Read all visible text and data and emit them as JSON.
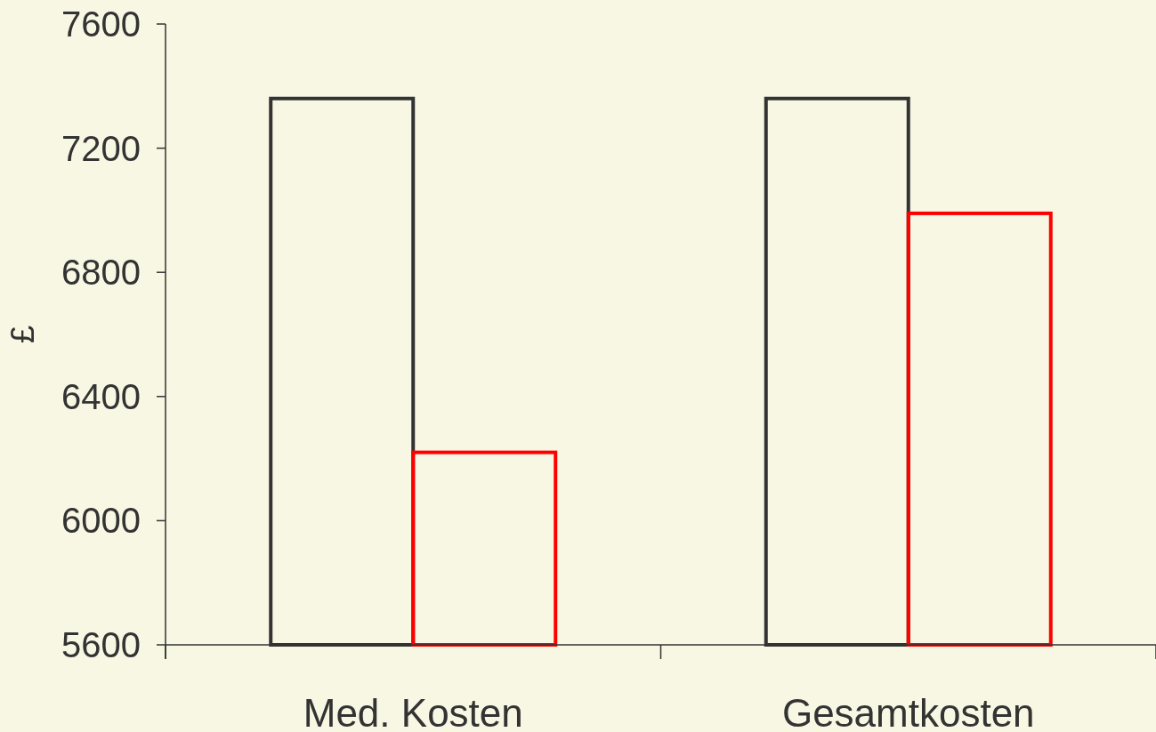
{
  "chart_data": {
    "type": "bar",
    "ylabel": "£",
    "categories": [
      "Med. Kosten",
      "Gesamtkosten"
    ],
    "series": [
      {
        "color": "#333333",
        "values": [
          7360,
          7360
        ]
      },
      {
        "color": "#ff0000",
        "values": [
          6220,
          6990
        ]
      }
    ],
    "ylim": [
      5600,
      7600
    ],
    "yticks": [
      5600,
      6000,
      6400,
      6800,
      7200,
      7600
    ]
  }
}
